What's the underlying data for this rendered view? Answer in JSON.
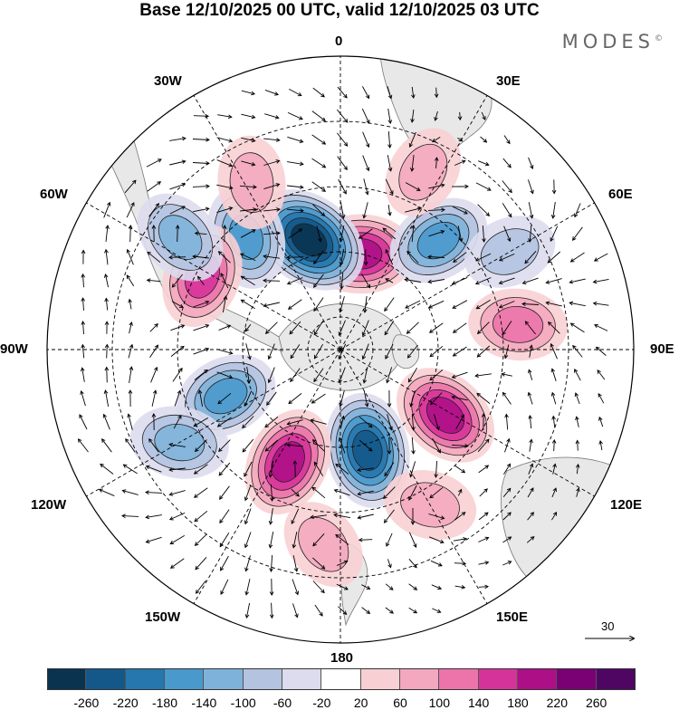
{
  "title": "Base 12/10/2025 00 UTC, valid 12/10/2025 03 UTC",
  "brand": {
    "name": "MODES",
    "mark": "©"
  },
  "longitude_labels": {
    "lon_0": "0",
    "lon_30e": "30E",
    "lon_60e": "60E",
    "lon_90e": "90E",
    "lon_120e": "120E",
    "lon_150e": "150E",
    "lon_180": "180",
    "lon_150w": "150W",
    "lon_120w": "120W",
    "lon_90w": "90W",
    "lon_60w": "60W",
    "lon_30w": "30W"
  },
  "wind_reference": {
    "value": "30"
  },
  "colorbar": {
    "tick_labels": [
      "-260",
      "-220",
      "-180",
      "-140",
      "-100",
      "-60",
      "-20",
      "20",
      "60",
      "100",
      "140",
      "180",
      "220",
      "260"
    ],
    "colors": [
      "#0a3350",
      "#14588a",
      "#2577ad",
      "#4a99cd",
      "#7fb2da",
      "#b3c3e0",
      "#dcdcee",
      "#ffffff",
      "#f8d0d4",
      "#f3a8bf",
      "#ec74ab",
      "#d6339a",
      "#ad0f87",
      "#7a0173",
      "#4f0663"
    ]
  },
  "palette": {
    "land": "#e8e8e8",
    "coast": "#777777",
    "grid": "#000000",
    "pos": [
      "#f8d0d4",
      "#f3a8bf",
      "#ec74ab",
      "#d6339a",
      "#ad0f87"
    ],
    "neg": [
      "#dcdcee",
      "#b3c3e0",
      "#7fb2da",
      "#4a99cd",
      "#2577ad",
      "#14588a",
      "#0a3350"
    ]
  },
  "anomaly_centers": [
    {
      "lon": 12,
      "lat": -60,
      "level": 4,
      "kind": "pos"
    },
    {
      "lon": -16,
      "lat": -55,
      "level": 6,
      "kind": "neg"
    },
    {
      "lon": -40,
      "lat": -45,
      "level": 3,
      "kind": "neg"
    },
    {
      "lon": -62,
      "lat": -42,
      "level": 3,
      "kind": "pos"
    },
    {
      "lon": 42,
      "lat": -45,
      "level": 3,
      "kind": "neg"
    },
    {
      "lon": 82,
      "lat": -35,
      "level": 2,
      "kind": "pos"
    },
    {
      "lon": 122,
      "lat": -52,
      "level": 4,
      "kind": "pos"
    },
    {
      "lon": 165,
      "lat": -58,
      "level": 5,
      "kind": "neg"
    },
    {
      "lon": -155,
      "lat": -52,
      "level": 4,
      "kind": "pos"
    },
    {
      "lon": -112,
      "lat": -52,
      "level": 3,
      "kind": "neg"
    },
    {
      "lon": -120,
      "lat": -33,
      "level": 2,
      "kind": "neg"
    },
    {
      "lon": -55,
      "lat": -30,
      "level": 2,
      "kind": "neg"
    },
    {
      "lon": -28,
      "lat": -32,
      "level": 1,
      "kind": "pos"
    },
    {
      "lon": 25,
      "lat": -30,
      "level": 1,
      "kind": "pos"
    },
    {
      "lon": 60,
      "lat": -30,
      "level": 1,
      "kind": "neg"
    },
    {
      "lon": 150,
      "lat": -35,
      "level": 1,
      "kind": "pos"
    },
    {
      "lon": -175,
      "lat": -30,
      "level": 1,
      "kind": "pos"
    }
  ]
}
